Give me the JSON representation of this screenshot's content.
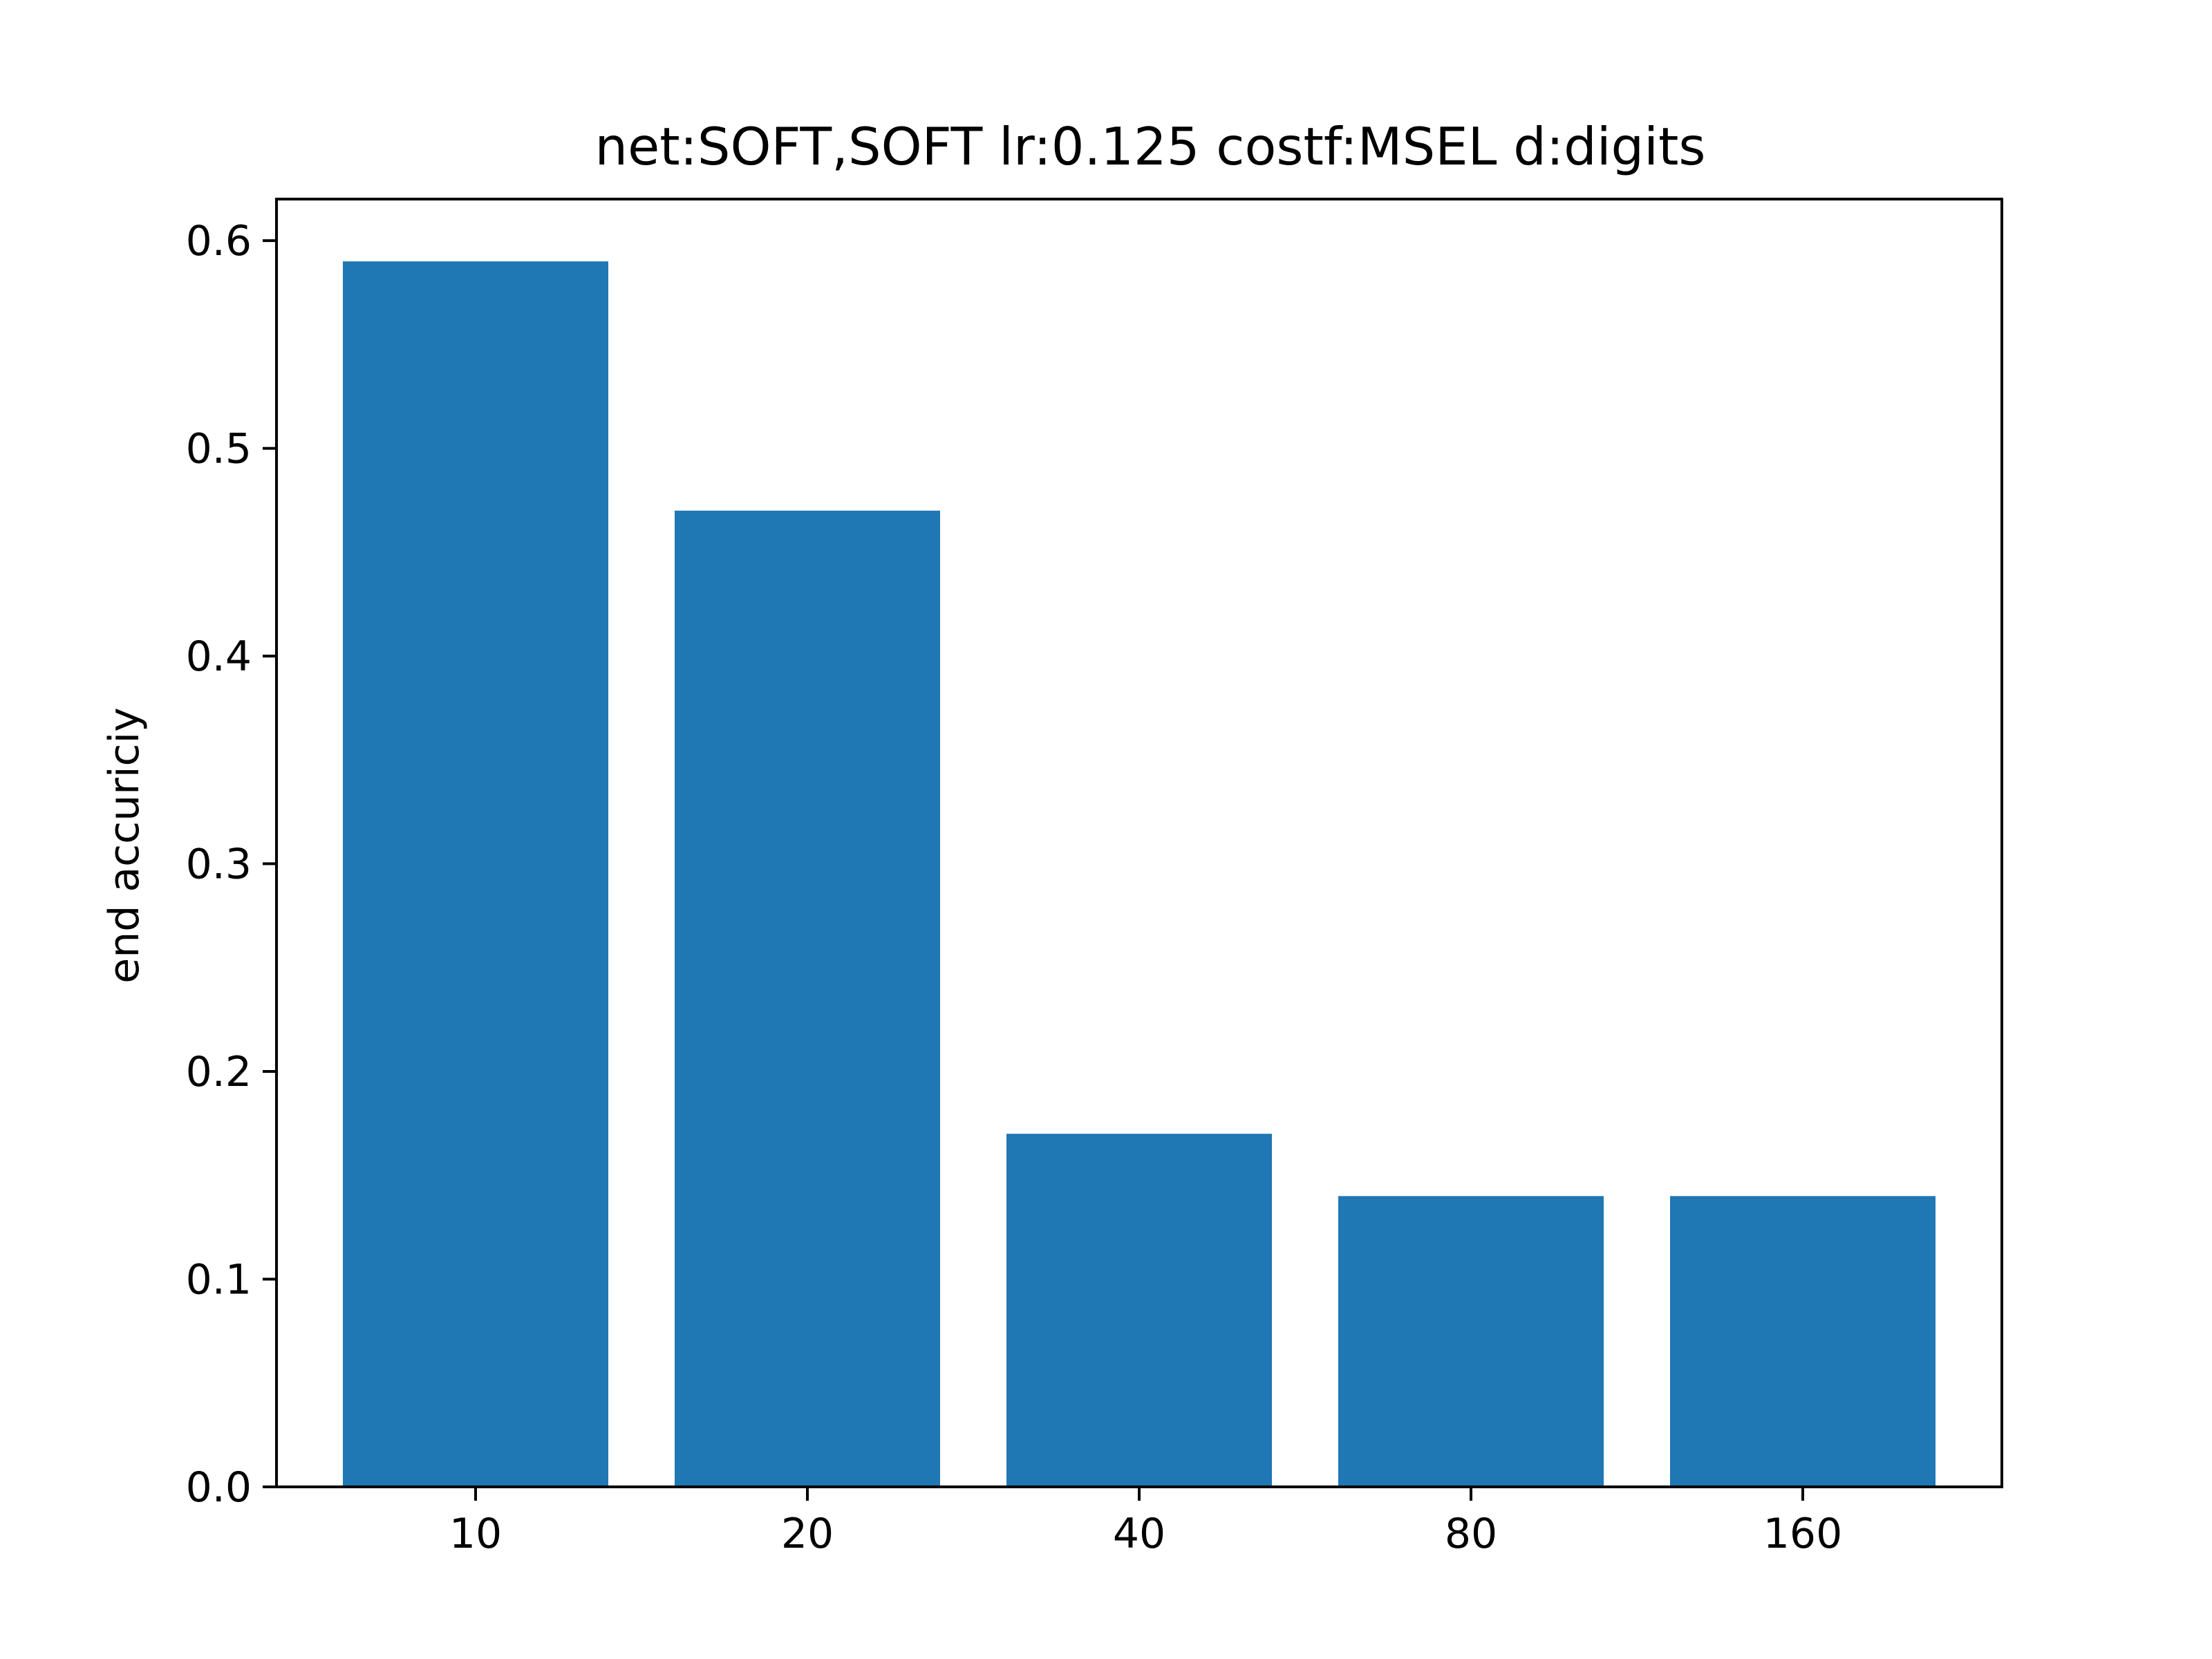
{
  "chart_data": {
    "type": "bar",
    "title": "net:SOFT,SOFT lr:0.125 costf:MSEL d:digits",
    "xlabel": "",
    "ylabel": "end accuriciy",
    "categories": [
      "10",
      "20",
      "40",
      "80",
      "160"
    ],
    "values": [
      0.59,
      0.47,
      0.17,
      0.14,
      0.14
    ],
    "ylim": [
      0,
      0.62
    ],
    "yticks": [
      0.0,
      0.1,
      0.2,
      0.3,
      0.4,
      0.5,
      0.6
    ],
    "ytick_labels": [
      "0.0",
      "0.1",
      "0.2",
      "0.3",
      "0.4",
      "0.5",
      "0.6"
    ],
    "bar_color": "#1f77b4",
    "grid": false,
    "legend": "none"
  }
}
